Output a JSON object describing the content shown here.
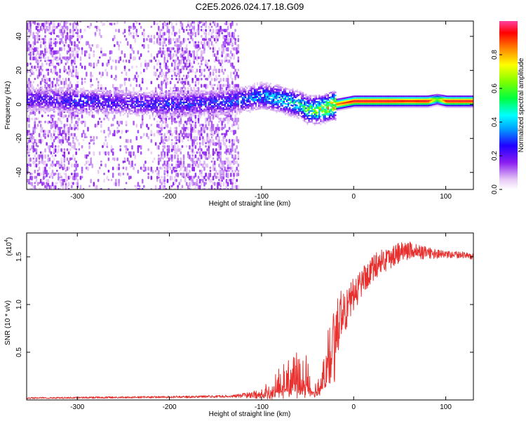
{
  "title": "C2E5.2026.024.17.18.G09",
  "chart_data": [
    {
      "type": "heatmap",
      "name": "spectrogram",
      "xlabel": "Height of straight line (km)",
      "ylabel": "Frequency (Hz)",
      "xlim": [
        -355,
        130
      ],
      "ylim": [
        -50,
        49
      ],
      "xticks": [
        -300,
        -200,
        -100,
        0,
        100
      ],
      "yticks": [
        -40,
        -20,
        0,
        20,
        40
      ],
      "xtick_labels": [
        "-300",
        "-200",
        "-100",
        "0",
        "100"
      ],
      "ytick_labels": [
        "-40",
        "-20",
        "0",
        "20",
        "40"
      ],
      "colorbar": {
        "label": "Normalized spectral amplitude",
        "range": [
          0,
          1
        ],
        "ticks": [
          0.0,
          0.2,
          0.4,
          0.6,
          0.8
        ],
        "tick_labels": [
          "0.0",
          "0.2",
          "0.4",
          "0.6",
          "0.8"
        ]
      },
      "signal_trace": {
        "height_km": [
          -330,
          -300,
          -250,
          -200,
          -150,
          -120,
          -100,
          -80,
          -60,
          -50,
          -40,
          -30,
          -20,
          -10,
          0,
          20,
          40,
          60,
          80,
          90,
          100,
          130
        ],
        "frequency_hz": [
          3,
          2,
          1,
          0,
          1,
          3,
          5,
          3,
          0,
          -3,
          -3,
          -2,
          0,
          1,
          2,
          2,
          2,
          2,
          2,
          3,
          2,
          2
        ],
        "peak_amplitude": [
          0.25,
          0.3,
          0.25,
          0.3,
          0.3,
          0.35,
          0.4,
          0.45,
          0.5,
          0.6,
          0.7,
          0.8,
          0.85,
          0.9,
          0.95,
          0.95,
          0.95,
          0.92,
          0.95,
          0.6,
          0.95,
          0.95
        ]
      },
      "noise_region_km": [
        -355,
        -125
      ]
    },
    {
      "type": "line",
      "name": "snr",
      "xlabel": "Height of straight line (km)",
      "ylabel": "SNR (10 * v/v)",
      "scale_label": "(x10",
      "scale_exponent": "4",
      "scale_close": ")",
      "xlim": [
        -355,
        130
      ],
      "ylim": [
        0.0,
        1.75
      ],
      "xticks": [
        -300,
        -200,
        -100,
        0,
        100
      ],
      "yticks": [
        0.5,
        1.0,
        1.5
      ],
      "xtick_labels": [
        "-300",
        "-200",
        "-100",
        "0",
        "100"
      ],
      "ytick_labels": [
        "0.5",
        "1.0",
        "1.5"
      ],
      "color": "#e8312f",
      "envelope": {
        "x": [
          -355,
          -200,
          -130,
          -100,
          -90,
          -80,
          -70,
          -60,
          -55,
          -50,
          -45,
          -40,
          -35,
          -30,
          -25,
          -20,
          -15,
          -10,
          -5,
          0,
          10,
          20,
          30,
          40,
          50,
          60,
          70,
          80,
          90,
          100,
          110,
          120,
          130
        ],
        "y": [
          0.02,
          0.03,
          0.04,
          0.06,
          0.12,
          0.18,
          0.22,
          0.25,
          0.28,
          0.22,
          0.12,
          0.1,
          0.2,
          0.4,
          0.55,
          0.7,
          0.85,
          0.95,
          1.0,
          1.1,
          1.25,
          1.38,
          1.45,
          1.5,
          1.55,
          1.57,
          1.55,
          1.54,
          1.53,
          1.52,
          1.52,
          1.52,
          1.5
        ]
      },
      "spread": {
        "x": [
          -355,
          -130,
          -100,
          -90,
          -80,
          -70,
          -60,
          -55,
          -50,
          -45,
          -40,
          -35,
          -30,
          -25,
          -20,
          -10,
          0,
          20,
          40,
          60,
          80,
          100,
          130
        ],
        "y": [
          0.008,
          0.012,
          0.05,
          0.12,
          0.18,
          0.22,
          0.3,
          0.32,
          0.2,
          0.1,
          0.08,
          0.15,
          0.25,
          0.3,
          0.3,
          0.25,
          0.18,
          0.14,
          0.12,
          0.1,
          0.06,
          0.04,
          0.03
        ]
      }
    }
  ]
}
